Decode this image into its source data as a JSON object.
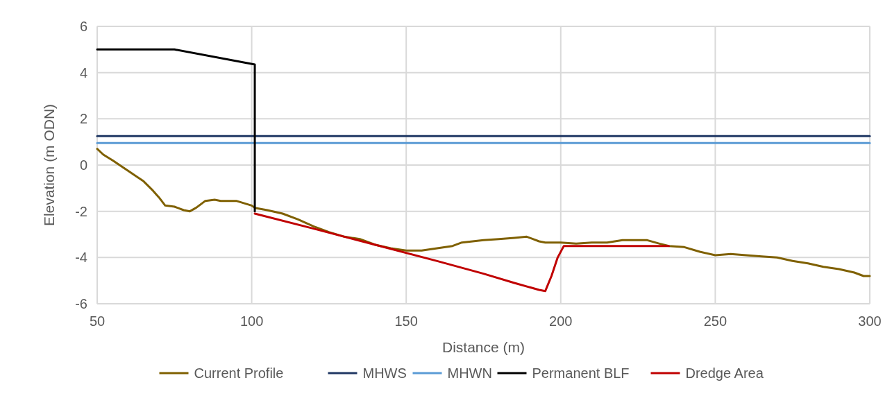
{
  "chart_data": {
    "type": "line",
    "xlabel": "Distance (m)",
    "ylabel": "Elevation (m ODN)",
    "xlim": [
      50,
      300
    ],
    "xticks": [
      50,
      100,
      150,
      200,
      250,
      300
    ],
    "ylim": [
      -6,
      6
    ],
    "yticks": [
      -6,
      -4,
      -2,
      0,
      2,
      4,
      6
    ],
    "grid": true,
    "legend": "bottom",
    "line_style": "solid",
    "series": [
      {
        "name": "Current Profile",
        "color": "#7f6000",
        "x": [
          50,
          52,
          55,
          60,
          65,
          68,
          70,
          72,
          75,
          78,
          80,
          82,
          85,
          88,
          90,
          95,
          100,
          101,
          105,
          110,
          115,
          120,
          125,
          130,
          135,
          140,
          145,
          150,
          155,
          160,
          165,
          168,
          175,
          180,
          185,
          189,
          193,
          195,
          200,
          205,
          210,
          215,
          220,
          225,
          228,
          232,
          235,
          240,
          245,
          250,
          255,
          260,
          265,
          270,
          275,
          280,
          285,
          290,
          295,
          298,
          300
        ],
        "values": [
          0.7,
          0.45,
          0.2,
          -0.25,
          -0.7,
          -1.1,
          -1.4,
          -1.75,
          -1.8,
          -1.95,
          -2.0,
          -1.85,
          -1.55,
          -1.5,
          -1.55,
          -1.55,
          -1.75,
          -1.85,
          -1.95,
          -2.1,
          -2.35,
          -2.65,
          -2.9,
          -3.1,
          -3.2,
          -3.45,
          -3.6,
          -3.7,
          -3.7,
          -3.6,
          -3.5,
          -3.35,
          -3.25,
          -3.2,
          -3.15,
          -3.1,
          -3.3,
          -3.35,
          -3.35,
          -3.4,
          -3.35,
          -3.35,
          -3.25,
          -3.25,
          -3.25,
          -3.4,
          -3.5,
          -3.55,
          -3.75,
          -3.9,
          -3.85,
          -3.9,
          -3.95,
          -4.0,
          -4.15,
          -4.25,
          -4.4,
          -4.5,
          -4.65,
          -4.8,
          -4.8
        ]
      },
      {
        "name": "MHWS",
        "color": "#203864",
        "x": [
          50,
          300
        ],
        "values": [
          1.25,
          1.25
        ]
      },
      {
        "name": "MHWN",
        "color": "#5b9bd5",
        "x": [
          50,
          300
        ],
        "values": [
          0.95,
          0.95
        ]
      },
      {
        "name": "Permanent BLF",
        "color": "#000000",
        "x": [
          50,
          75,
          101,
          101
        ],
        "values": [
          5,
          5,
          4.35,
          -2.0
        ]
      },
      {
        "name": "Dredge Area",
        "color": "#c00000",
        "x": [
          101,
          120,
          140,
          160,
          175,
          185,
          193,
          195,
          197,
          199,
          201,
          235
        ],
        "values": [
          -2.1,
          -2.75,
          -3.45,
          -4.15,
          -4.7,
          -5.1,
          -5.4,
          -5.45,
          -4.8,
          -4.0,
          -3.5,
          -3.5
        ]
      }
    ]
  }
}
